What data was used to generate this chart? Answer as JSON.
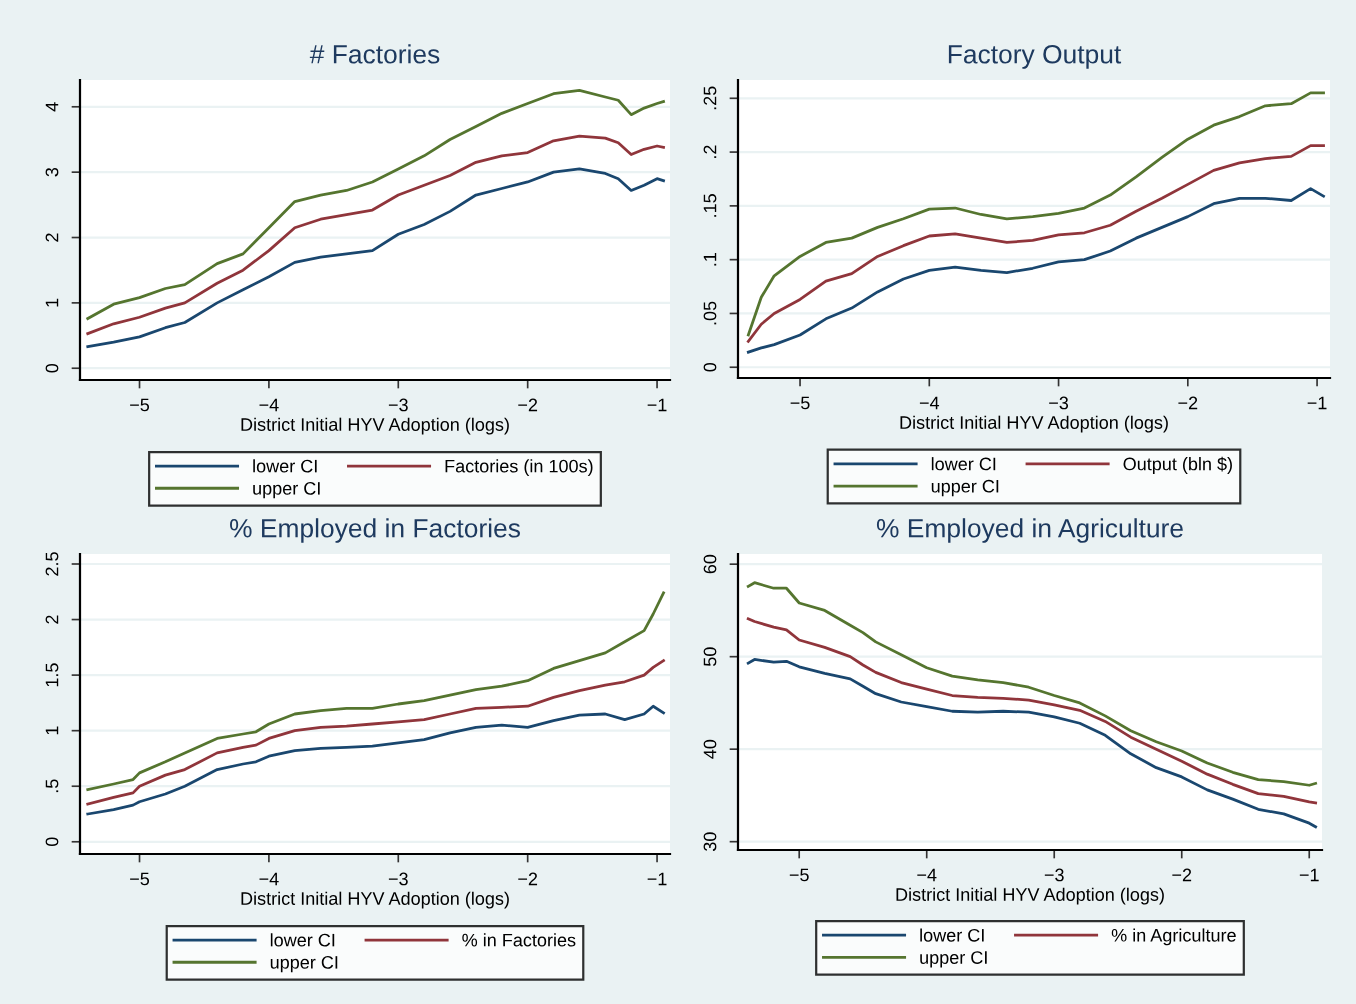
{
  "chart_data": [
    {
      "type": "line",
      "title": "# Factories",
      "xlabel": "District Initial HYV Adoption (logs)",
      "legend": "bottom",
      "grid": "y",
      "xlim": [
        -5.46,
        -0.9
      ],
      "xticks": [
        {
          "value": -5,
          "label": "−5"
        },
        {
          "value": -4,
          "label": "−4"
        },
        {
          "value": -3,
          "label": "−3"
        },
        {
          "value": -2,
          "label": "−2"
        },
        {
          "value": -1,
          "label": "−1"
        }
      ],
      "ylim": [
        -0.18,
        4.41
      ],
      "yticks": [
        0,
        1,
        2,
        3,
        4
      ],
      "x": [
        -5.4,
        -5.2,
        -5.0,
        -4.8,
        -4.65,
        -4.4,
        -4.2,
        -4.0,
        -3.8,
        -3.6,
        -3.4,
        -3.2,
        -3.0,
        -2.8,
        -2.6,
        -2.4,
        -2.2,
        -2.0,
        -1.8,
        -1.6,
        -1.4,
        -1.3,
        -1.2,
        -1.1,
        -1.0,
        -0.95
      ],
      "series": [
        {
          "name": "lower CI",
          "color": "#1a476f",
          "values": [
            0.33,
            0.4,
            0.48,
            0.62,
            0.7,
            1.0,
            1.2,
            1.4,
            1.62,
            1.7,
            1.75,
            1.8,
            2.05,
            2.2,
            2.4,
            2.65,
            2.75,
            2.85,
            3.0,
            3.05,
            2.98,
            2.9,
            2.72,
            2.8,
            2.9,
            2.87
          ]
        },
        {
          "name": "Factories (in 100s)",
          "color": "#90353b",
          "values": [
            0.53,
            0.68,
            0.78,
            0.92,
            1.0,
            1.3,
            1.5,
            1.8,
            2.15,
            2.28,
            2.35,
            2.42,
            2.65,
            2.8,
            2.95,
            3.15,
            3.25,
            3.3,
            3.48,
            3.55,
            3.52,
            3.45,
            3.27,
            3.35,
            3.4,
            3.38
          ]
        },
        {
          "name": "upper CI",
          "color": "#55752f",
          "values": [
            0.76,
            0.98,
            1.08,
            1.22,
            1.28,
            1.6,
            1.75,
            2.15,
            2.55,
            2.65,
            2.72,
            2.85,
            3.05,
            3.25,
            3.5,
            3.7,
            3.9,
            4.05,
            4.2,
            4.25,
            4.15,
            4.1,
            3.88,
            3.98,
            4.05,
            4.08
          ]
        }
      ]
    },
    {
      "type": "line",
      "title": "Factory Output",
      "xlabel": "District Initial HYV Adoption (logs)",
      "legend": "bottom",
      "grid": "y",
      "xlim": [
        -5.48,
        -0.9
      ],
      "xticks": [
        {
          "value": -5,
          "label": "−5"
        },
        {
          "value": -4,
          "label": "−4"
        },
        {
          "value": -3,
          "label": "−3"
        },
        {
          "value": -2,
          "label": "−2"
        },
        {
          "value": -1,
          "label": "−1"
        }
      ],
      "ylim": [
        -0.01,
        0.267
      ],
      "yticks": [
        0,
        {
          "value": 0.05,
          "label": ".05"
        },
        {
          "value": 0.1,
          "label": ".1"
        },
        {
          "value": 0.15,
          "label": ".15"
        },
        {
          "value": 0.2,
          "label": ".2"
        },
        {
          "value": 0.25,
          "label": ".25"
        }
      ],
      "x": [
        -5.4,
        -5.3,
        -5.2,
        -5.0,
        -4.8,
        -4.6,
        -4.4,
        -4.2,
        -4.0,
        -3.8,
        -3.6,
        -3.4,
        -3.2,
        -3.0,
        -2.8,
        -2.6,
        -2.4,
        -2.2,
        -2.0,
        -1.8,
        -1.6,
        -1.4,
        -1.2,
        -1.05,
        -0.95
      ],
      "series": [
        {
          "name": "lower CI",
          "color": "#1a476f",
          "values": [
            0.014,
            0.018,
            0.021,
            0.03,
            0.045,
            0.055,
            0.07,
            0.082,
            0.09,
            0.093,
            0.09,
            0.088,
            0.092,
            0.098,
            0.1,
            0.108,
            0.12,
            0.13,
            0.14,
            0.152,
            0.157,
            0.157,
            0.155,
            0.166,
            0.159
          ]
        },
        {
          "name": "Output (bln $)",
          "color": "#90353b",
          "values": [
            0.024,
            0.04,
            0.05,
            0.063,
            0.08,
            0.087,
            0.103,
            0.113,
            0.122,
            0.124,
            0.12,
            0.116,
            0.118,
            0.123,
            0.125,
            0.132,
            0.145,
            0.157,
            0.17,
            0.183,
            0.19,
            0.194,
            0.196,
            0.206,
            0.206
          ]
        },
        {
          "name": "upper CI",
          "color": "#55752f",
          "values": [
            0.03,
            0.065,
            0.085,
            0.103,
            0.116,
            0.12,
            0.13,
            0.138,
            0.147,
            0.148,
            0.142,
            0.138,
            0.14,
            0.143,
            0.148,
            0.16,
            0.177,
            0.195,
            0.212,
            0.225,
            0.233,
            0.243,
            0.245,
            0.255,
            0.255
          ]
        }
      ]
    },
    {
      "type": "line",
      "title": "% Employed in Factories",
      "xlabel": "District Initial HYV Adoption (logs)",
      "legend": "bottom",
      "grid": "y",
      "xlim": [
        -5.46,
        -0.9
      ],
      "xticks": [
        {
          "value": -5,
          "label": "−5"
        },
        {
          "value": -4,
          "label": "−4"
        },
        {
          "value": -3,
          "label": "−3"
        },
        {
          "value": -2,
          "label": "−2"
        },
        {
          "value": -1,
          "label": "−1"
        }
      ],
      "ylim": [
        -0.11,
        2.59
      ],
      "yticks": [
        0,
        {
          "value": 0.5,
          "label": ".5"
        },
        1,
        1.5,
        2,
        2.5
      ],
      "x": [
        -5.4,
        -5.2,
        -5.05,
        -5.0,
        -4.8,
        -4.65,
        -4.4,
        -4.2,
        -4.1,
        -4.0,
        -3.8,
        -3.6,
        -3.4,
        -3.2,
        -3.0,
        -2.8,
        -2.6,
        -2.4,
        -2.2,
        -2.0,
        -1.8,
        -1.6,
        -1.4,
        -1.25,
        -1.1,
        -1.03,
        -0.95
      ],
      "series": [
        {
          "name": "lower CI",
          "color": "#1a476f",
          "values": [
            0.25,
            0.29,
            0.33,
            0.36,
            0.43,
            0.5,
            0.65,
            0.7,
            0.72,
            0.77,
            0.82,
            0.84,
            0.85,
            0.86,
            0.89,
            0.92,
            0.98,
            1.03,
            1.05,
            1.03,
            1.09,
            1.14,
            1.15,
            1.1,
            1.15,
            1.22,
            1.16
          ]
        },
        {
          "name": "% in Factories",
          "color": "#90353b",
          "values": [
            0.34,
            0.4,
            0.44,
            0.5,
            0.6,
            0.65,
            0.8,
            0.85,
            0.87,
            0.93,
            1.0,
            1.03,
            1.04,
            1.06,
            1.08,
            1.1,
            1.15,
            1.2,
            1.21,
            1.22,
            1.3,
            1.36,
            1.41,
            1.44,
            1.5,
            1.57,
            1.63
          ]
        },
        {
          "name": "upper CI",
          "color": "#55752f",
          "values": [
            0.47,
            0.52,
            0.56,
            0.62,
            0.72,
            0.8,
            0.93,
            0.97,
            0.99,
            1.06,
            1.15,
            1.18,
            1.2,
            1.2,
            1.24,
            1.27,
            1.32,
            1.37,
            1.4,
            1.45,
            1.56,
            1.63,
            1.7,
            1.8,
            1.9,
            2.05,
            2.24
          ]
        }
      ]
    },
    {
      "type": "line",
      "title": "% Employed in Agriculture",
      "xlabel": "District Initial HYV Adoption (logs)",
      "legend": "bottom",
      "grid": "y",
      "xlim": [
        -5.48,
        -0.9
      ],
      "xticks": [
        {
          "value": -5,
          "label": "−5"
        },
        {
          "value": -4,
          "label": "−4"
        },
        {
          "value": -3,
          "label": "−3"
        },
        {
          "value": -2,
          "label": "−2"
        },
        {
          "value": -1,
          "label": "−1"
        }
      ],
      "ylim": [
        29.1,
        61.1
      ],
      "yticks": [
        30,
        40,
        50,
        60
      ],
      "x": [
        -5.4,
        -5.35,
        -5.2,
        -5.1,
        -5.0,
        -4.8,
        -4.6,
        -4.5,
        -4.4,
        -4.2,
        -4.0,
        -3.8,
        -3.6,
        -3.4,
        -3.2,
        -3.0,
        -2.8,
        -2.6,
        -2.4,
        -2.2,
        -2.0,
        -1.8,
        -1.6,
        -1.4,
        -1.2,
        -1.0,
        -0.95
      ],
      "series": [
        {
          "name": "lower CI",
          "color": "#1a476f",
          "values": [
            49.3,
            49.7,
            49.4,
            49.5,
            48.9,
            48.2,
            47.6,
            46.8,
            46.0,
            45.1,
            44.6,
            44.1,
            44.0,
            44.1,
            44.0,
            43.5,
            42.8,
            41.5,
            39.5,
            38.0,
            37.0,
            35.6,
            34.6,
            33.5,
            33.0,
            32.0,
            31.6
          ]
        },
        {
          "name": "% in Agriculture",
          "color": "#90353b",
          "values": [
            54.1,
            53.8,
            53.2,
            52.9,
            51.8,
            51.0,
            50.0,
            49.1,
            48.3,
            47.2,
            46.5,
            45.8,
            45.6,
            45.5,
            45.3,
            44.8,
            44.2,
            43.0,
            41.3,
            40.0,
            38.7,
            37.3,
            36.2,
            35.2,
            34.9,
            34.3,
            34.2
          ]
        },
        {
          "name": "upper CI",
          "color": "#55752f",
          "values": [
            57.6,
            58.0,
            57.4,
            57.4,
            55.8,
            55.0,
            53.4,
            52.6,
            51.6,
            50.2,
            48.8,
            47.9,
            47.5,
            47.2,
            46.7,
            45.8,
            45.0,
            43.6,
            42.0,
            40.8,
            39.8,
            38.5,
            37.5,
            36.7,
            36.5,
            36.1,
            36.3
          ]
        }
      ]
    }
  ]
}
